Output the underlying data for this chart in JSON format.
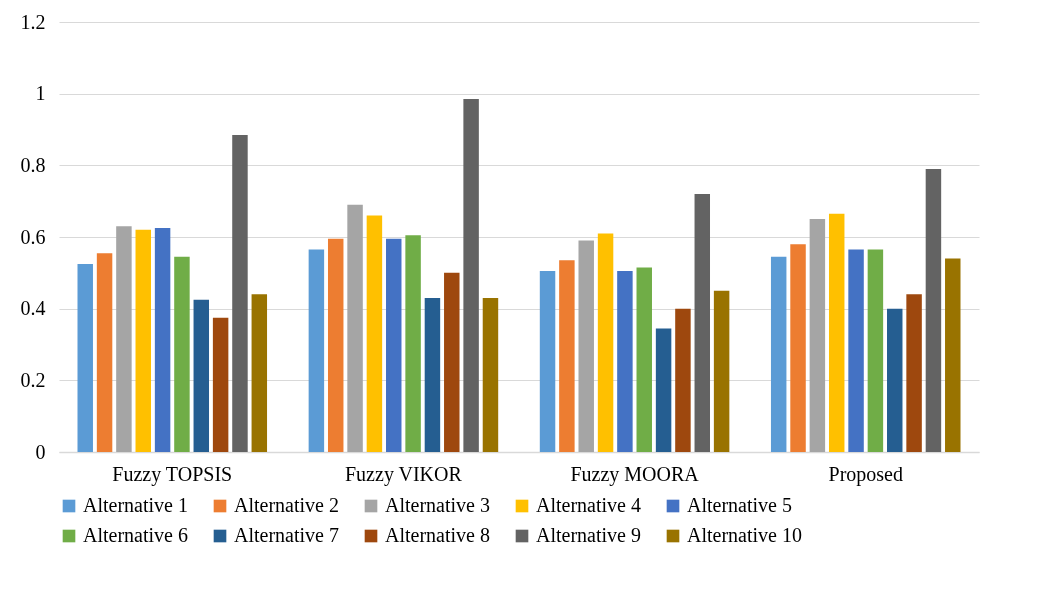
{
  "chart_data": {
    "type": "bar",
    "categories": [
      "Fuzzy TOPSIS",
      "Fuzzy VIKOR",
      "Fuzzy MOORA",
      "Proposed"
    ],
    "series": [
      {
        "name": "Alternative 1",
        "color": "#5b9bd5",
        "values": [
          0.525,
          0.565,
          0.505,
          0.545
        ]
      },
      {
        "name": "Alternative 2",
        "color": "#ed7d31",
        "values": [
          0.555,
          0.595,
          0.535,
          0.58
        ]
      },
      {
        "name": "Alternative 3",
        "color": "#a5a5a5",
        "values": [
          0.63,
          0.69,
          0.59,
          0.65
        ]
      },
      {
        "name": "Alternative 4",
        "color": "#ffc000",
        "values": [
          0.62,
          0.66,
          0.61,
          0.665
        ]
      },
      {
        "name": "Alternative 5",
        "color": "#4472c4",
        "values": [
          0.625,
          0.595,
          0.505,
          0.565
        ]
      },
      {
        "name": "Alternative 6",
        "color": "#70ad47",
        "values": [
          0.545,
          0.605,
          0.515,
          0.565
        ]
      },
      {
        "name": "Alternative 7",
        "color": "#255e91",
        "values": [
          0.425,
          0.43,
          0.345,
          0.4
        ]
      },
      {
        "name": "Alternative 8",
        "color": "#9e480e",
        "values": [
          0.375,
          0.5,
          0.4,
          0.44
        ]
      },
      {
        "name": "Alternative 9",
        "color": "#636363",
        "values": [
          0.885,
          0.985,
          0.72,
          0.79
        ]
      },
      {
        "name": "Alternative 10",
        "color": "#997300",
        "values": [
          0.44,
          0.43,
          0.45,
          0.54
        ]
      }
    ],
    "ylim": [
      0,
      1.2
    ],
    "yticks": [
      0,
      0.2,
      0.4,
      0.6,
      0.8,
      1,
      1.2
    ],
    "grid": "y",
    "legend": "bottom"
  }
}
